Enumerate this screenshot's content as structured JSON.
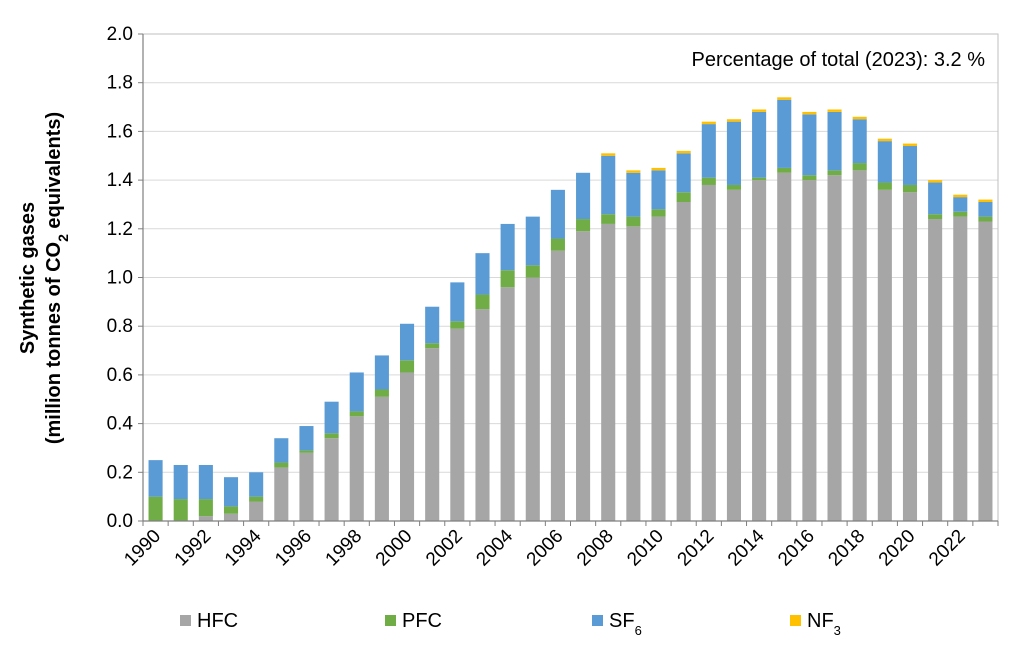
{
  "chart_data": {
    "type": "bar",
    "stacked": true,
    "title": "",
    "ylabel_line1": "Synthetic gases",
    "ylabel_line2_prefix": "(million tonnes of CO",
    "ylabel_line2_sub": "2",
    "ylabel_line2_suffix": " equivalents)",
    "annotation": "Percentage of total (2023):  3.2 %",
    "ylim": [
      0,
      2.0
    ],
    "yticks": [
      "0.0",
      "0.2",
      "0.4",
      "0.6",
      "0.8",
      "1.0",
      "1.2",
      "1.4",
      "1.6",
      "1.8",
      "2.0"
    ],
    "ytick_values": [
      0,
      0.2,
      0.4,
      0.6,
      0.8,
      1.0,
      1.2,
      1.4,
      1.6,
      1.8,
      2.0
    ],
    "grid": true,
    "legend_position": "bottom",
    "categories": [
      1990,
      1991,
      1992,
      1993,
      1994,
      1995,
      1996,
      1997,
      1998,
      1999,
      2000,
      2001,
      2002,
      2003,
      2004,
      2005,
      2006,
      2007,
      2008,
      2009,
      2010,
      2011,
      2012,
      2013,
      2014,
      2015,
      2016,
      2017,
      2018,
      2019,
      2020,
      2021,
      2022,
      2023
    ],
    "xtick_labels": [
      "1990",
      "1992",
      "1994",
      "1996",
      "1998",
      "2000",
      "2002",
      "2004",
      "2006",
      "2008",
      "2010",
      "2012",
      "2014",
      "2016",
      "2018",
      "2020",
      "2022"
    ],
    "series": [
      {
        "name": "HFC",
        "label_main": "HFC",
        "label_sub": "",
        "color": "#a6a6a6",
        "values": [
          0.0,
          0.0,
          0.02,
          0.03,
          0.08,
          0.22,
          0.28,
          0.34,
          0.43,
          0.51,
          0.61,
          0.71,
          0.79,
          0.87,
          0.96,
          1.0,
          1.11,
          1.19,
          1.22,
          1.21,
          1.25,
          1.31,
          1.38,
          1.36,
          1.4,
          1.43,
          1.4,
          1.42,
          1.44,
          1.36,
          1.35,
          1.24,
          1.25,
          1.23
        ]
      },
      {
        "name": "PFC",
        "label_main": "PFC",
        "label_sub": "",
        "color": "#70ad47",
        "values": [
          0.1,
          0.09,
          0.07,
          0.03,
          0.02,
          0.02,
          0.01,
          0.02,
          0.02,
          0.03,
          0.05,
          0.02,
          0.03,
          0.06,
          0.07,
          0.05,
          0.05,
          0.05,
          0.04,
          0.04,
          0.03,
          0.04,
          0.03,
          0.02,
          0.01,
          0.02,
          0.02,
          0.02,
          0.03,
          0.03,
          0.03,
          0.02,
          0.02,
          0.02
        ]
      },
      {
        "name": "SF6",
        "label_main": "SF",
        "label_sub": "6",
        "color": "#5b9bd5",
        "values": [
          0.15,
          0.14,
          0.14,
          0.12,
          0.1,
          0.1,
          0.1,
          0.13,
          0.16,
          0.14,
          0.15,
          0.15,
          0.16,
          0.17,
          0.19,
          0.2,
          0.2,
          0.19,
          0.24,
          0.18,
          0.16,
          0.16,
          0.22,
          0.26,
          0.27,
          0.28,
          0.25,
          0.24,
          0.18,
          0.17,
          0.16,
          0.13,
          0.06,
          0.06
        ]
      },
      {
        "name": "NF3",
        "label_main": "NF",
        "label_sub": "3",
        "color": "#ffc000",
        "values": [
          0,
          0,
          0,
          0,
          0,
          0,
          0,
          0,
          0,
          0,
          0,
          0,
          0,
          0,
          0,
          0,
          0,
          0,
          0.01,
          0.01,
          0.01,
          0.01,
          0.01,
          0.01,
          0.01,
          0.01,
          0.01,
          0.01,
          0.01,
          0.01,
          0.01,
          0.01,
          0.01,
          0.01
        ]
      }
    ]
  }
}
